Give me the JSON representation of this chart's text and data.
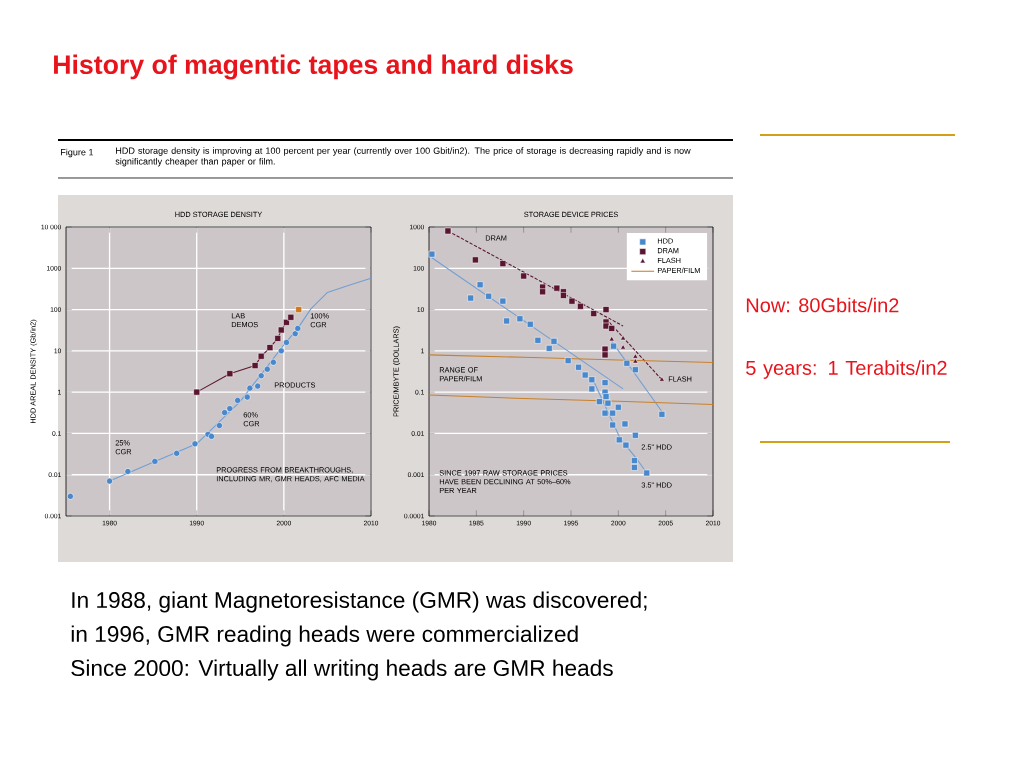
{
  "chart_data": [
    {
      "type": "scatter",
      "title": "HDD STORAGE DENSITY",
      "ylabel": "HDD AREAL DENSITY (Gb/in2)",
      "log": true,
      "grid": true,
      "xlim": [
        1975,
        2010
      ],
      "xticks": [
        1980,
        1990,
        2000,
        2010
      ],
      "ylim": [
        0.001,
        10000
      ],
      "yticks": [
        {
          "value": 10000,
          "label": "10 000"
        },
        1000,
        100,
        10,
        1,
        0.1,
        0.01,
        0.001
      ],
      "annotations": [
        "LAB DEMOS",
        "100% CGR",
        "PRODUCTS",
        "60% CGR",
        "25% CGR",
        "PROGRESS FROM BREAKTHROUGHS, INCLUDING MR, GMR HEADS, AFC MEDIA",
        "History of magentic tapes and hard disks",
        "Figure 1",
        "HDD storage density is improving at 100 percent per year (currently over 100 Gbit/in2). The price of storage is decreasing rapidly and is now significantly cheaper than paper or film.",
        "In 1988, giant  Magnetoresistance (GMR) was discovered;",
        "in 1996, GMR reading heads were commercialized",
        "Since 2000: Virtually all writing heads are GMR heads"
      ],
      "series": [
        {
          "type": "line",
          "color": "#6f9fd4",
          "marker": "none",
          "x": [
            1980,
            1985,
            1990,
            1995,
            2000,
            2001.6,
            2003.1,
            2005,
            2007.3,
            2010
          ],
          "values": [
            0.007,
            0.02,
            0.056,
            0.6,
            14,
            35,
            104,
            260,
            380,
            575
          ]
        },
        {
          "type": "line",
          "color": "#5a1530",
          "marker": "square",
          "x": [
            1990,
            1993.8,
            1996.7,
            1997.4,
            1998.4,
            1999.3,
            1999.7,
            2000.3,
            2000.8
          ],
          "values": [
            1,
            2.8,
            4.4,
            7.4,
            12,
            20,
            32,
            49,
            65
          ]
        },
        {
          "color": "#4a88cc",
          "marker": "circle",
          "x": [
            1975.5,
            1980,
            1982.1,
            1985.2,
            1987.7,
            1989.8,
            1991.3,
            1991.7,
            1992.6,
            1993.2,
            1993.8,
            1994.7,
            1995.8,
            1996.1,
            1997.0,
            1997.4,
            1998.1,
            1998.8,
            1999.7,
            2000.3,
            2001.3,
            2001.6
          ],
          "values": [
            0.003,
            0.007,
            0.012,
            0.021,
            0.033,
            0.056,
            0.095,
            0.085,
            0.155,
            0.32,
            0.4,
            0.63,
            0.76,
            1.25,
            1.4,
            2.5,
            3.6,
            5.3,
            10,
            16,
            26,
            35
          ]
        },
        {
          "color": "#d07a20",
          "marker": "square",
          "x": [
            2001.7
          ],
          "values": [
            100
          ]
        }
      ]
    },
    {
      "type": "scatter",
      "title": "STORAGE DEVICE PRICES",
      "ylabel": "PRICE/MBYTE (DOLLARS)",
      "log": true,
      "grid": "y",
      "legend": "top right",
      "xlim": [
        1980,
        2010
      ],
      "xticks": [
        1980,
        1985,
        1990,
        1995,
        2000,
        2005,
        2010
      ],
      "ylim": [
        0.0001,
        1000
      ],
      "yticks": [
        1000,
        100,
        10,
        1,
        0.1,
        0.01,
        0.001,
        0.0001
      ],
      "annotations": [
        "DRAM",
        "FLASH",
        "RANGE OF PAPER/FILM",
        "2.5\" HDD",
        "3.5\" HDD",
        "SINCE 1997 RAW STORAGE PRICES HAVE BEEN DECLINING AT 50%–60% PER YEAR",
        "Now: 80Gbits/in2",
        "5 years: 1 Terabits/in2"
      ],
      "series": [
        {
          "type": "line",
          "color": "#c8802a",
          "marker": "none",
          "x": [
            1980,
            1990,
            2000,
            2010
          ],
          "values": [
            0.085,
            0.07,
            0.06,
            0.05
          ]
        },
        {
          "type": "line",
          "color": "#6f9fd4",
          "marker": "none",
          "x": [
            1980.3,
            2000.5
          ],
          "values": [
            180,
            0.12
          ]
        },
        {
          "type": "line",
          "color": "#6f9fd4",
          "marker": "none",
          "x": [
            1999.3,
            2004.6
          ],
          "values": [
            1.7,
            0.034
          ]
        },
        {
          "type": "line",
          "color": "#6f9fd4",
          "marker": "none",
          "x": [
            1997.2,
            2000.2,
            2001.9,
            2003.0
          ],
          "values": [
            0.23,
            0.0075,
            0.0025,
            0.0011
          ]
        },
        {
          "type": "line",
          "color": "#5a1530",
          "marker": "none",
          "line_style": "dashed",
          "x": [
            1982,
            2000.5
          ],
          "values": [
            800,
            4
          ]
        },
        {
          "type": "line",
          "color": "#5a1530",
          "marker": "none",
          "line_style": "dashed",
          "x": [
            1998.7,
            2004.6
          ],
          "values": [
            6,
            0.2
          ]
        },
        {
          "name": "HDD",
          "color": "#4a88cc",
          "marker": "square",
          "x": [
            1980.3,
            1985.4,
            1984.4,
            1986.3,
            1987.8,
            1988.2,
            1989.6,
            1990.7,
            1991.5,
            1992.7,
            1993.2,
            1994.7,
            1995.8,
            1996.5,
            1997.2,
            1997.2,
            1998.0,
            1998.6,
            1998.6,
            1998.7,
            1998.9,
            1998.6,
            1999.4,
            1999.4,
            2000.0,
            1999.5,
            2000.1,
            2000.7,
            2000.8,
            2000.9,
            2001.8,
            2001.8,
            2001.7,
            2001.7,
            2003.0,
            2004.6
          ],
          "values": [
            220,
            40,
            19,
            21,
            16,
            5.3,
            6,
            4.4,
            1.8,
            1.15,
            1.7,
            0.58,
            0.4,
            0.26,
            0.2,
            0.12,
            0.059,
            0.17,
            0.1,
            0.078,
            0.054,
            0.031,
            0.031,
            0.016,
            0.043,
            1.3,
            0.007,
            0.017,
            0.0052,
            0.5,
            0.35,
            0.009,
            0.0022,
            0.0015,
            0.0011,
            0.029
          ]
        },
        {
          "name": "DRAM",
          "color": "#5a1530",
          "marker": "square",
          "x": [
            1982.0,
            1984.9,
            1987.8,
            1990.0,
            1992.0,
            1992.0,
            1993.5,
            1994.2,
            1994.2,
            1995.1,
            1996.0,
            1997.4,
            1998.7,
            1998.7,
            1998.7,
            1999.3,
            1998.6,
            1998.6
          ],
          "values": [
            800,
            160,
            130,
            65,
            35,
            27,
            33,
            27,
            22,
            16,
            12,
            8,
            10,
            5,
            4,
            3.5,
            1.1,
            0.8
          ]
        },
        {
          "name": "FLASH",
          "color": "#5a1530",
          "marker": "triangle",
          "x": [
            1999.3,
            2000.5,
            2000.5,
            2001.8,
            2001.8,
            2004.6
          ],
          "values": [
            1.9,
            2,
            1.2,
            0.72,
            0.55,
            0.2
          ]
        },
        {
          "name": "PAPER/FILM",
          "type": "line",
          "color": "#c8802a",
          "marker": "none",
          "x": [
            1980,
            1990,
            2000,
            2010
          ],
          "values": [
            0.8,
            0.7,
            0.6,
            0.52
          ]
        }
      ]
    }
  ]
}
